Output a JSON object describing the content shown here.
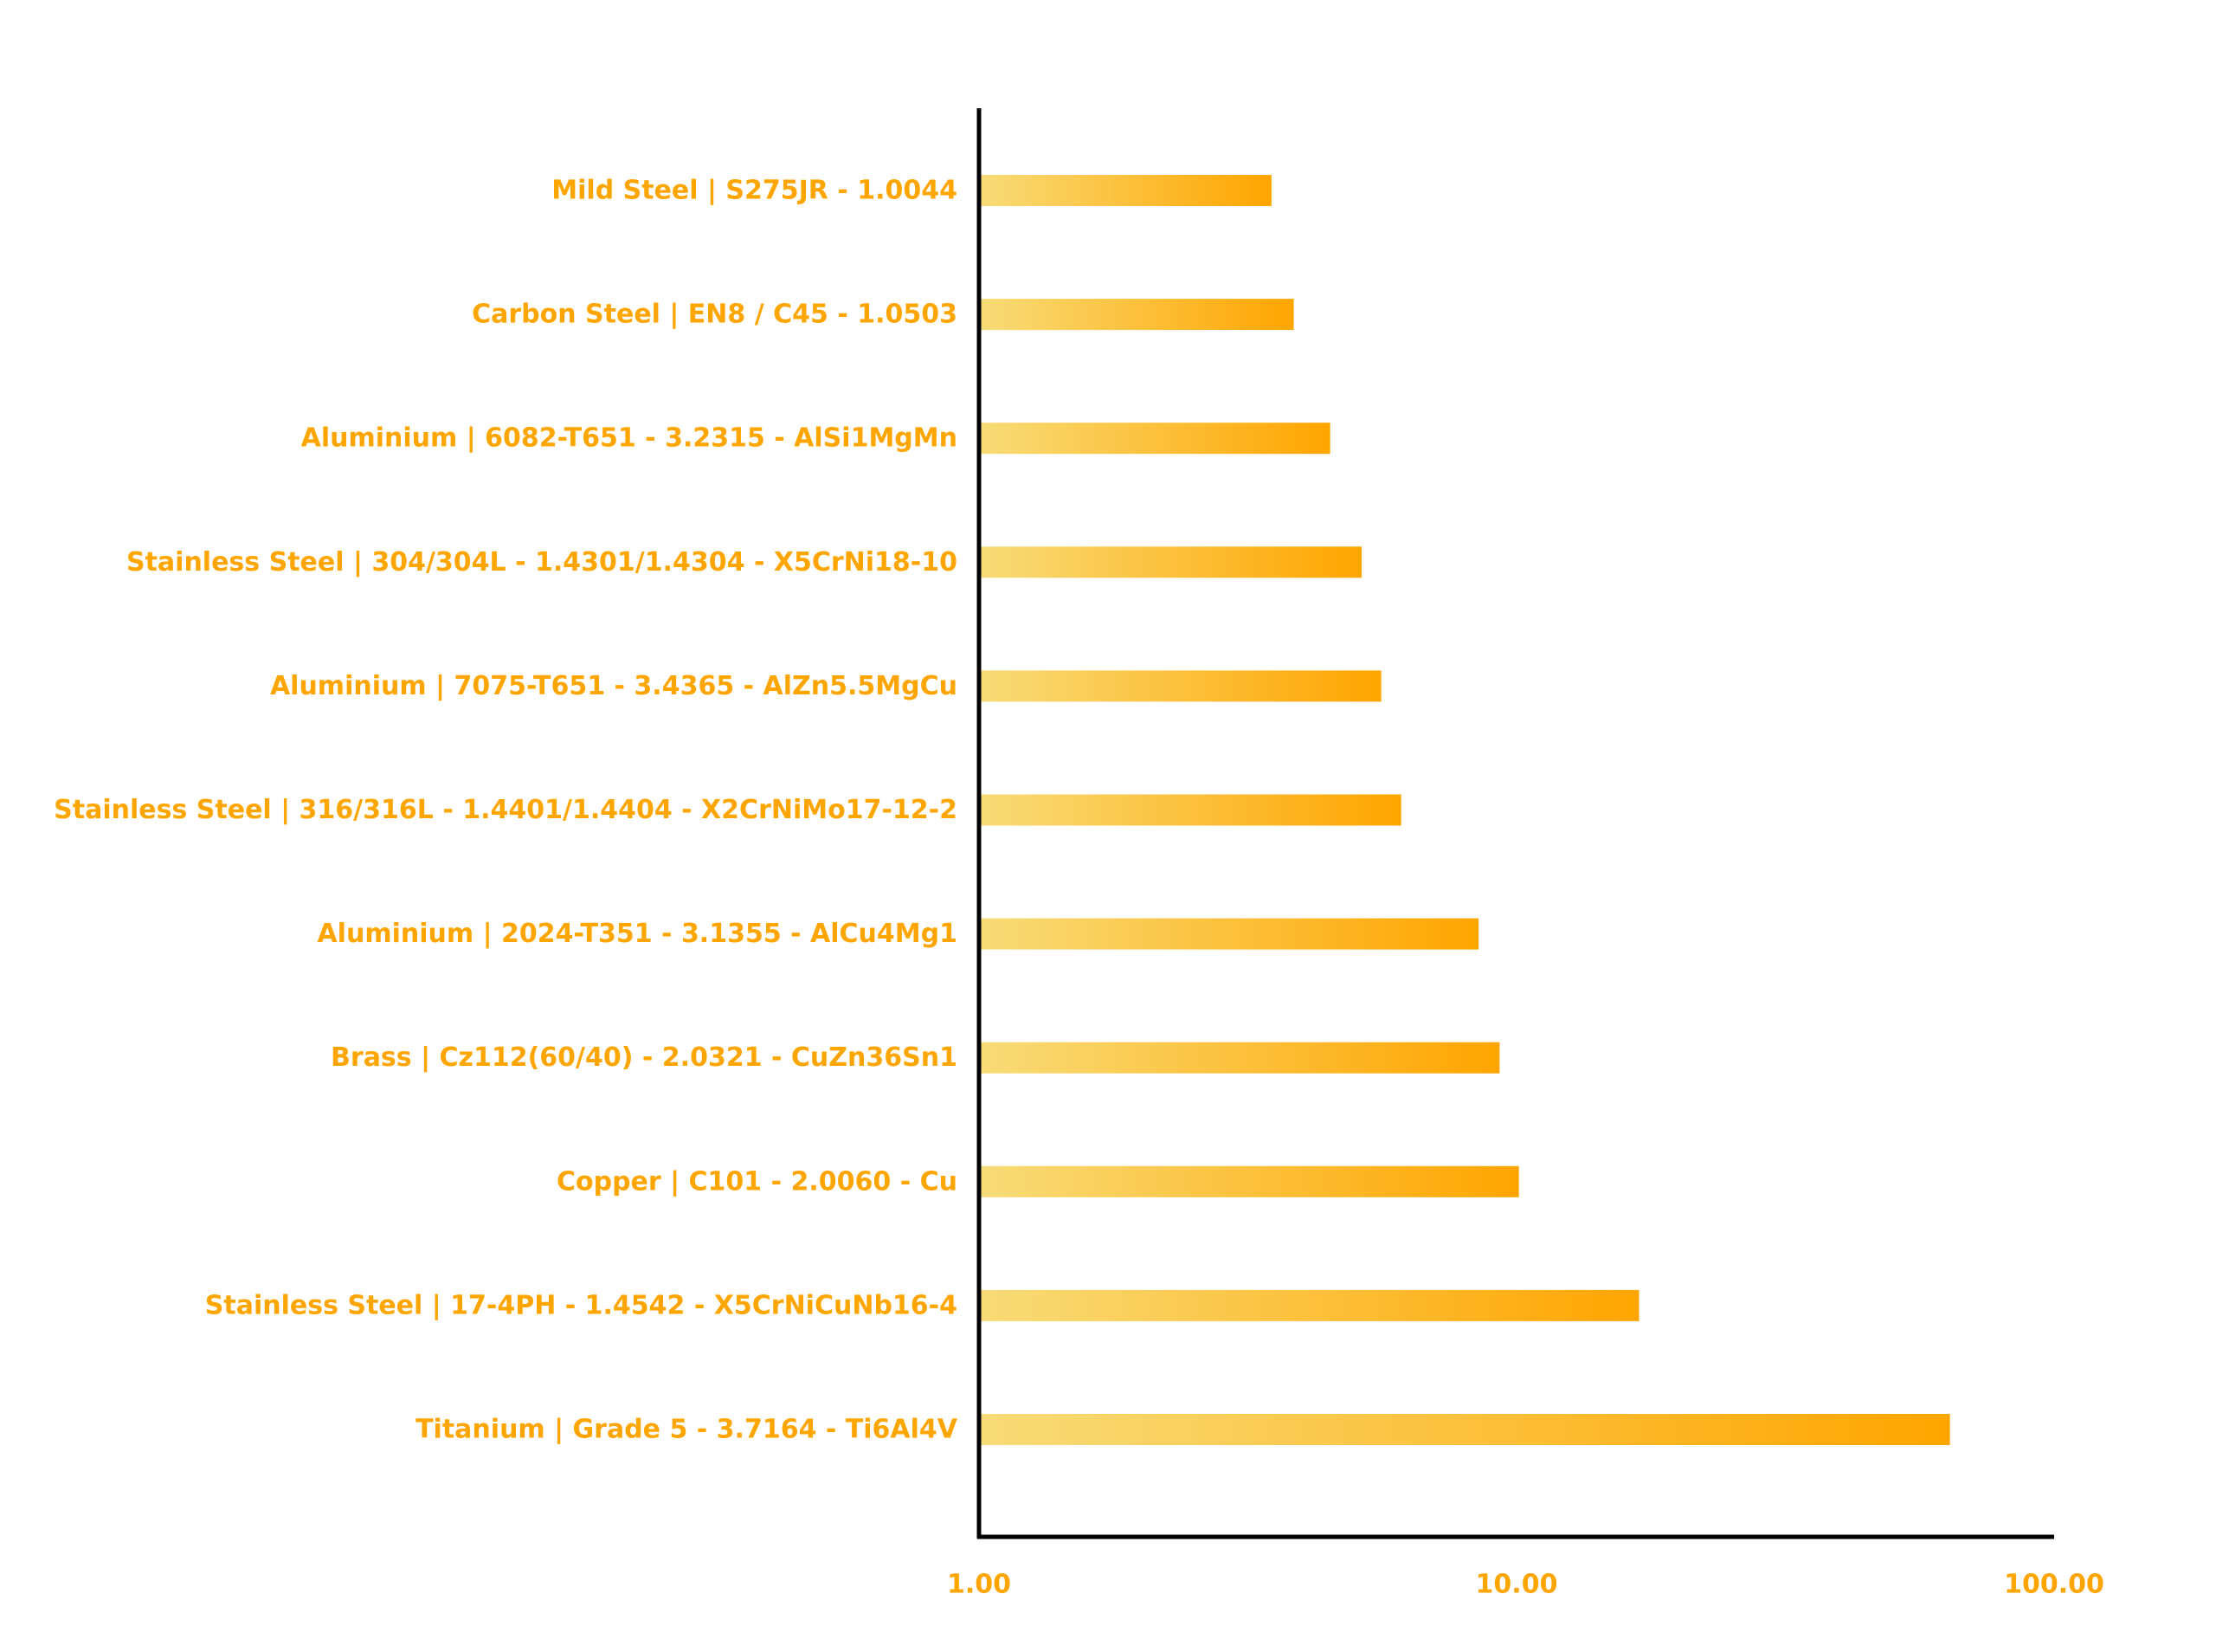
{
  "chart_data": {
    "type": "bar",
    "orientation": "horizontal",
    "x_scale": "log",
    "xlim": [
      1,
      100
    ],
    "x_ticks": [
      "1.00",
      "10.00",
      "100.00"
    ],
    "grid": false,
    "title": "",
    "xlabel": "",
    "ylabel": "",
    "categories": [
      "Mild Steel | S275JR - 1.0044",
      "Carbon Steel | EN8 / C45 - 1.0503",
      "Aluminium | 6082-T651 - 3.2315 - AlSi1MgMn",
      "Stainless Steel | 304/304L - 1.4301/1.4304 - X5CrNi18-10",
      "Aluminium | 7075-T651 - 3.4365 - AlZn5.5MgCu",
      "Stainless Steel | 316/316L - 1.4401/1.4404 - X2CrNiMo17-12-2",
      "Aluminium | 2024-T351 - 3.1355 - AlCu4Mg1",
      "Brass | Cz112(60/40) - 2.0321 - CuZn36Sn1",
      "Copper | C101 - 2.0060 - Cu",
      "Stainless Steel | 17-4PH - 1.4542 - X5CrNiCuNb16-4",
      "Titanium | Grade 5 - 3.7164 - Ti6Al4V"
    ],
    "values": [
      3.5,
      3.85,
      4.5,
      5.15,
      5.6,
      6.1,
      8.5,
      9.3,
      10.1,
      16.9,
      64
    ],
    "colors": {
      "label": "#FFA500",
      "bar_start": "#F8DC78",
      "bar_end": "#FFA500",
      "axis": "#000000"
    }
  }
}
